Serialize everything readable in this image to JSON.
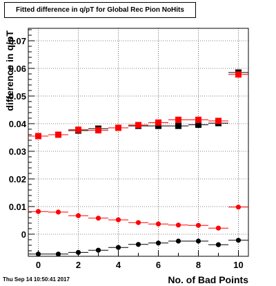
{
  "title": "Fitted difference in q/pT for Global Rec Pion NoHits",
  "timestamp": "Thu Sep 14 10:50:41 2017",
  "chart_data": {
    "type": "scatter",
    "xlabel": "No. of Bad Points",
    "ylabel": "difference in q/pT",
    "xlim": [
      -0.5,
      10.5
    ],
    "ylim": [
      -0.008,
      0.0745
    ],
    "xticks": [
      "0",
      "2",
      "4",
      "6",
      "8",
      "10"
    ],
    "yticks": [
      "0",
      "0.01",
      "0.02",
      "0.03",
      "0.04",
      "0.05",
      "0.06",
      "0.07"
    ],
    "grid": true,
    "series": [
      {
        "marker": "square",
        "color": "#000000",
        "x": [
          0,
          1,
          2,
          3,
          4,
          5,
          6,
          7,
          8,
          9,
          10
        ],
        "y": [
          0.0355,
          0.036,
          0.0375,
          0.0382,
          0.0385,
          0.0392,
          0.0392,
          0.0392,
          0.0396,
          0.0402,
          0.0585
        ]
      },
      {
        "marker": "square",
        "color": "#ff0000",
        "x": [
          0,
          1,
          2,
          3,
          4,
          5,
          6,
          7,
          8,
          9,
          10
        ],
        "y": [
          0.0355,
          0.036,
          0.0378,
          0.0376,
          0.0385,
          0.0395,
          0.0404,
          0.0414,
          0.0414,
          0.041,
          0.0578
        ]
      },
      {
        "marker": "circle",
        "color": "#ff0000",
        "x": [
          0,
          1,
          2,
          3,
          4,
          5,
          6,
          7,
          8,
          9,
          10
        ],
        "y": [
          0.0082,
          0.008,
          0.0067,
          0.0058,
          0.0052,
          0.0042,
          0.0037,
          0.0033,
          0.0032,
          0.0022,
          0.0098
        ]
      },
      {
        "marker": "circle",
        "color": "#000000",
        "x": [
          0,
          1,
          2,
          3,
          4,
          5,
          6,
          7,
          8,
          9,
          10
        ],
        "y": [
          -0.0072,
          -0.0072,
          -0.0066,
          -0.0058,
          -0.0048,
          -0.0037,
          -0.0032,
          -0.0025,
          -0.0025,
          -0.0038,
          -0.0022
        ]
      }
    ]
  }
}
